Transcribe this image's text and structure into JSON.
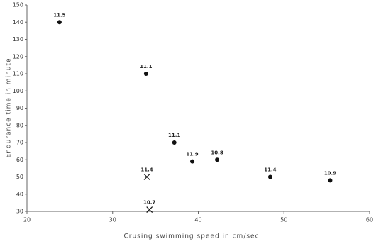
{
  "chart_data": {
    "type": "scatter",
    "xlabel": "Crusing swimming speed in cm/sec",
    "ylabel": "Endurance time in minute",
    "xlim": [
      20,
      60
    ],
    "xticks": [
      20,
      30,
      40,
      50,
      60
    ],
    "ylim": [
      30,
      150
    ],
    "yticks": [
      30,
      40,
      50,
      60,
      70,
      80,
      90,
      100,
      110,
      120,
      130,
      140,
      150
    ],
    "series": [
      {
        "marker": "circle",
        "color": "#111111",
        "x": [
          23.8,
          33.9,
          37.2,
          39.3,
          42.2,
          48.4,
          55.4
        ],
        "values": [
          140,
          110,
          70,
          59,
          60,
          50,
          48
        ],
        "labels": [
          "11.5",
          "11.1",
          "11.1",
          "11.9",
          "10.8",
          "11.4",
          "10.9"
        ]
      },
      {
        "marker": "cross",
        "color": "#111111",
        "x": [
          34.0,
          34.3
        ],
        "values": [
          50,
          31
        ],
        "labels": [
          "11.4",
          "10.7"
        ]
      }
    ]
  }
}
